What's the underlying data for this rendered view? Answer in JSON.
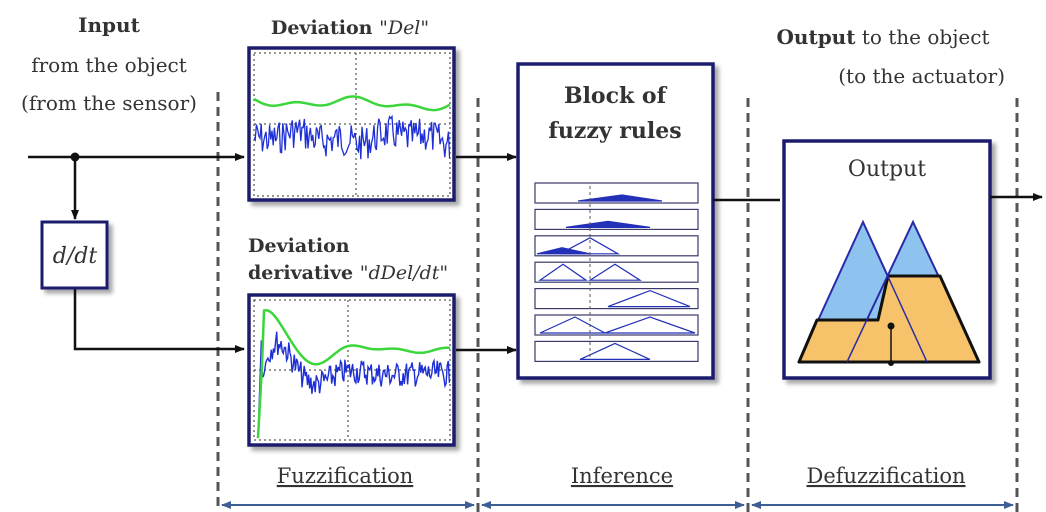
{
  "input": {
    "title": "Input",
    "line1": "from the object",
    "line2": "(from the sensor)"
  },
  "derivative_block": {
    "label": "d/dt"
  },
  "deviation": {
    "prefix": "Deviation ",
    "name": "\"Del\""
  },
  "deviation_derivative": {
    "line1": "Deviation",
    "prefix": "derivative ",
    "name": "\"dDel/dt\""
  },
  "rules_block": {
    "line1": "Block of",
    "line2": "fuzzy rules"
  },
  "output": {
    "bold": "Output",
    "rest": " to the object",
    "line2": "(to the actuator)"
  },
  "output_block": {
    "label": "Output"
  },
  "stages": {
    "fuzzification": "Fuzzification",
    "inference": "Inference",
    "defuzzification": "Defuzzification"
  },
  "colors": {
    "frame": "#1f1f6e",
    "signal_blue": "#1f2fd6",
    "signal_green": "#3bd63b",
    "triangle_blue": "#8fc3ef",
    "trapezoid_orange": "#f6c36a",
    "dashed": "#555555",
    "stage_arrow": "#3e5f95"
  }
}
